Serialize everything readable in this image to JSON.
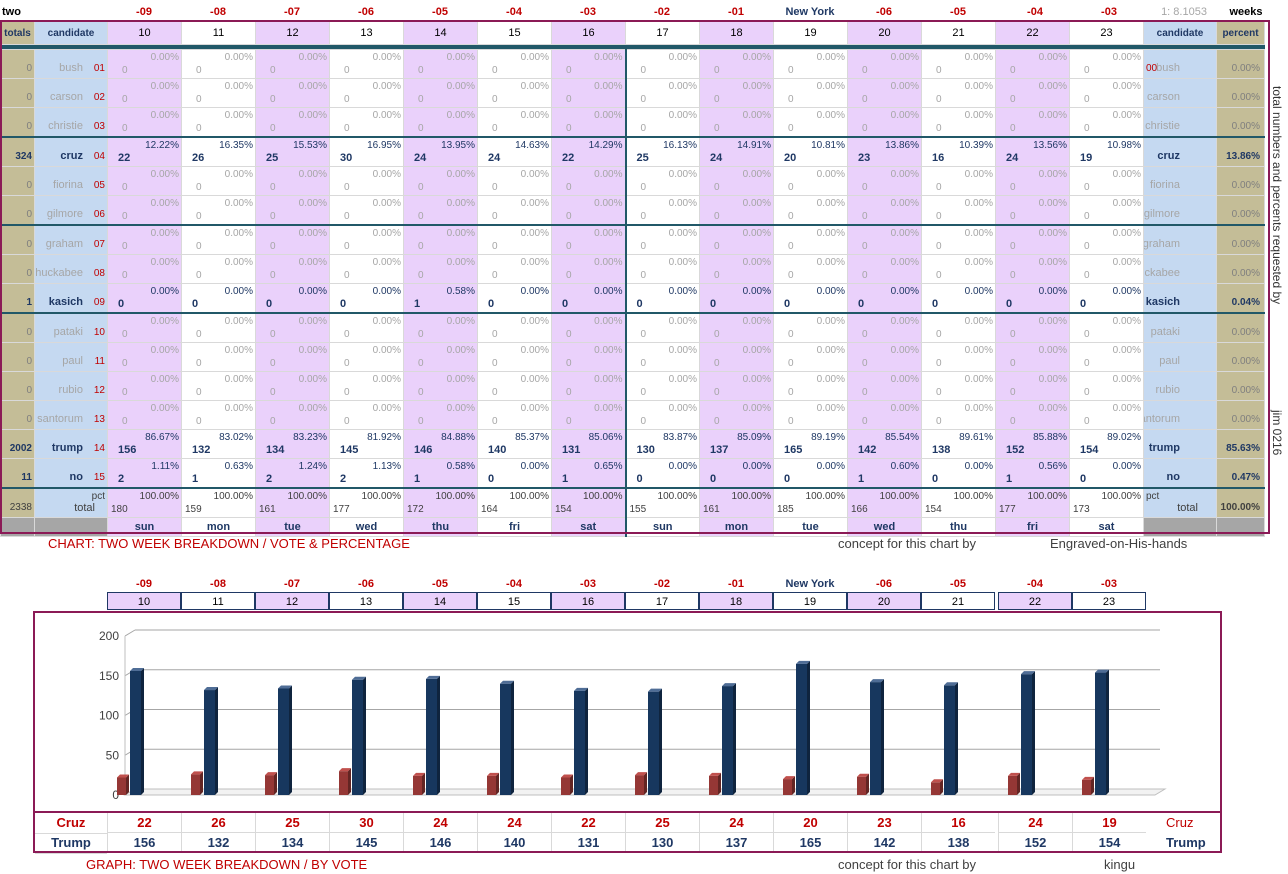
{
  "top": {
    "corner_label": "two",
    "weeks_label": "weeks",
    "ratio_label": "1: 8.1053",
    "col_headers": [
      "-09",
      "-08",
      "-07",
      "-06",
      "-05",
      "-04",
      "-03",
      "-02",
      "-01",
      "New York",
      "-06",
      "-05",
      "-04",
      "-03"
    ],
    "days": [
      "10",
      "11",
      "12",
      "13",
      "14",
      "15",
      "16",
      "17",
      "18",
      "19",
      "20",
      "21",
      "22",
      "23"
    ],
    "weekdays": [
      "sun",
      "mon",
      "tue",
      "wed",
      "thu",
      "fri",
      "sat",
      "sun",
      "mon",
      "tue",
      "wed",
      "thu",
      "fri",
      "sat"
    ],
    "left_headers": {
      "totals": "totals",
      "candidate": "candidate"
    },
    "right_headers": {
      "candidate": "candidate",
      "percent": "percent"
    },
    "pct_label": "pct",
    "total_label": "total",
    "grand_total": "2338",
    "total_pct": "100.00%",
    "daily_totals": [
      "180",
      "159",
      "161",
      "177",
      "172",
      "164",
      "154",
      "155",
      "161",
      "185",
      "166",
      "154",
      "177",
      "173"
    ],
    "side_note": "total numbers and percents requested by",
    "side_note2": "jim 0216"
  },
  "candidates": [
    {
      "name": "bush",
      "num": "01",
      "total": "0",
      "pct": "0.00%",
      "right_prefix": "00",
      "counts": [
        "0",
        "0",
        "0",
        "0",
        "0",
        "0",
        "0",
        "0",
        "0",
        "0",
        "0",
        "0",
        "0",
        "0"
      ],
      "pcts": [
        "0.00%",
        "0.00%",
        "0.00%",
        "0.00%",
        "0.00%",
        "0.00%",
        "0.00%",
        "0.00%",
        "0.00%",
        "0.00%",
        "0.00%",
        "0.00%",
        "0.00%",
        "0.00%"
      ]
    },
    {
      "name": "carson",
      "num": "02",
      "total": "0",
      "pct": "0.00%",
      "counts": [
        "0",
        "0",
        "0",
        "0",
        "0",
        "0",
        "0",
        "0",
        "0",
        "0",
        "0",
        "0",
        "0",
        "0"
      ],
      "pcts": [
        "0.00%",
        "0.00%",
        "0.00%",
        "0.00%",
        "0.00%",
        "0.00%",
        "0.00%",
        "0.00%",
        "0.00%",
        "0.00%",
        "0.00%",
        "0.00%",
        "0.00%",
        "0.00%"
      ]
    },
    {
      "name": "christie",
      "num": "03",
      "total": "0",
      "pct": "0.00%",
      "counts": [
        "0",
        "0",
        "0",
        "0",
        "0",
        "0",
        "0",
        "0",
        "0",
        "0",
        "0",
        "0",
        "0",
        "0"
      ],
      "pcts": [
        "0.00%",
        "0.00%",
        "0.00%",
        "0.00%",
        "0.00%",
        "0.00%",
        "0.00%",
        "0.00%",
        "0.00%",
        "0.00%",
        "0.00%",
        "0.00%",
        "0.00%",
        "0.00%"
      ]
    },
    {
      "name": "cruz",
      "num": "04",
      "total": "324",
      "pct": "13.86%",
      "hot": true,
      "counts": [
        "22",
        "26",
        "25",
        "30",
        "24",
        "24",
        "22",
        "25",
        "24",
        "20",
        "23",
        "16",
        "24",
        "19"
      ],
      "pcts": [
        "12.22%",
        "16.35%",
        "15.53%",
        "16.95%",
        "13.95%",
        "14.63%",
        "14.29%",
        "16.13%",
        "14.91%",
        "10.81%",
        "13.86%",
        "10.39%",
        "13.56%",
        "10.98%"
      ]
    },
    {
      "name": "fiorina",
      "num": "05",
      "total": "0",
      "pct": "0.00%",
      "counts": [
        "0",
        "0",
        "0",
        "0",
        "0",
        "0",
        "0",
        "0",
        "0",
        "0",
        "0",
        "0",
        "0",
        "0"
      ],
      "pcts": [
        "0.00%",
        "0.00%",
        "0.00%",
        "0.00%",
        "0.00%",
        "0.00%",
        "0.00%",
        "0.00%",
        "0.00%",
        "0.00%",
        "0.00%",
        "0.00%",
        "0.00%",
        "0.00%"
      ]
    },
    {
      "name": "gilmore",
      "num": "06",
      "total": "0",
      "pct": "0.00%",
      "counts": [
        "0",
        "0",
        "0",
        "0",
        "0",
        "0",
        "0",
        "0",
        "0",
        "0",
        "0",
        "0",
        "0",
        "0"
      ],
      "pcts": [
        "0.00%",
        "0.00%",
        "0.00%",
        "0.00%",
        "0.00%",
        "0.00%",
        "0.00%",
        "0.00%",
        "0.00%",
        "0.00%",
        "0.00%",
        "0.00%",
        "0.00%",
        "0.00%"
      ]
    },
    {
      "name": "graham",
      "num": "07",
      "total": "0",
      "pct": "0.00%",
      "counts": [
        "0",
        "0",
        "0",
        "0",
        "0",
        "0",
        "0",
        "0",
        "0",
        "0",
        "0",
        "0",
        "0",
        "0"
      ],
      "pcts": [
        "0.00%",
        "0.00%",
        "0.00%",
        "0.00%",
        "0.00%",
        "0.00%",
        "0.00%",
        "0.00%",
        "0.00%",
        "0.00%",
        "0.00%",
        "0.00%",
        "0.00%",
        "0.00%"
      ]
    },
    {
      "name": "huckabee",
      "num": "08",
      "total": "0",
      "pct": "0.00%",
      "counts": [
        "0",
        "0",
        "0",
        "0",
        "0",
        "0",
        "0",
        "0",
        "0",
        "0",
        "0",
        "0",
        "0",
        "0"
      ],
      "pcts": [
        "0.00%",
        "0.00%",
        "0.00%",
        "0.00%",
        "0.00%",
        "0.00%",
        "0.00%",
        "0.00%",
        "0.00%",
        "0.00%",
        "0.00%",
        "0.00%",
        "0.00%",
        "0.00%"
      ]
    },
    {
      "name": "kasich",
      "num": "09",
      "total": "1",
      "pct": "0.04%",
      "hot": true,
      "counts": [
        "0",
        "0",
        "0",
        "0",
        "1",
        "0",
        "0",
        "0",
        "0",
        "0",
        "0",
        "0",
        "0",
        "0"
      ],
      "pcts": [
        "0.00%",
        "0.00%",
        "0.00%",
        "0.00%",
        "0.58%",
        "0.00%",
        "0.00%",
        "0.00%",
        "0.00%",
        "0.00%",
        "0.00%",
        "0.00%",
        "0.00%",
        "0.00%"
      ]
    },
    {
      "name": "pataki",
      "num": "10",
      "total": "0",
      "pct": "0.00%",
      "counts": [
        "0",
        "0",
        "0",
        "0",
        "0",
        "0",
        "0",
        "0",
        "0",
        "0",
        "0",
        "0",
        "0",
        "0"
      ],
      "pcts": [
        "0.00%",
        "0.00%",
        "0.00%",
        "0.00%",
        "0.00%",
        "0.00%",
        "0.00%",
        "0.00%",
        "0.00%",
        "0.00%",
        "0.00%",
        "0.00%",
        "0.00%",
        "0.00%"
      ]
    },
    {
      "name": "paul",
      "num": "11",
      "total": "0",
      "pct": "0.00%",
      "counts": [
        "0",
        "0",
        "0",
        "0",
        "0",
        "0",
        "0",
        "0",
        "0",
        "0",
        "0",
        "0",
        "0",
        "0"
      ],
      "pcts": [
        "0.00%",
        "0.00%",
        "0.00%",
        "0.00%",
        "0.00%",
        "0.00%",
        "0.00%",
        "0.00%",
        "0.00%",
        "0.00%",
        "0.00%",
        "0.00%",
        "0.00%",
        "0.00%"
      ]
    },
    {
      "name": "rubio",
      "num": "12",
      "total": "0",
      "pct": "0.00%",
      "counts": [
        "0",
        "0",
        "0",
        "0",
        "0",
        "0",
        "0",
        "0",
        "0",
        "0",
        "0",
        "0",
        "0",
        "0"
      ],
      "pcts": [
        "0.00%",
        "0.00%",
        "0.00%",
        "0.00%",
        "0.00%",
        "0.00%",
        "0.00%",
        "0.00%",
        "0.00%",
        "0.00%",
        "0.00%",
        "0.00%",
        "0.00%",
        "0.00%"
      ]
    },
    {
      "name": "santorum",
      "num": "13",
      "total": "0",
      "pct": "0.00%",
      "counts": [
        "0",
        "0",
        "0",
        "0",
        "0",
        "0",
        "0",
        "0",
        "0",
        "0",
        "0",
        "0",
        "0",
        "0"
      ],
      "pcts": [
        "0.00%",
        "0.00%",
        "0.00%",
        "0.00%",
        "0.00%",
        "0.00%",
        "0.00%",
        "0.00%",
        "0.00%",
        "0.00%",
        "0.00%",
        "0.00%",
        "0.00%",
        "0.00%"
      ]
    },
    {
      "name": "trump",
      "num": "14",
      "total": "2002",
      "pct": "85.63%",
      "hot": true,
      "counts": [
        "156",
        "132",
        "134",
        "145",
        "146",
        "140",
        "131",
        "130",
        "137",
        "165",
        "142",
        "138",
        "152",
        "154"
      ],
      "pcts": [
        "86.67%",
        "83.02%",
        "83.23%",
        "81.92%",
        "84.88%",
        "85.37%",
        "85.06%",
        "83.87%",
        "85.09%",
        "89.19%",
        "85.54%",
        "89.61%",
        "85.88%",
        "89.02%"
      ]
    },
    {
      "name": "no",
      "num": "15",
      "total": "11",
      "pct": "0.47%",
      "hot": true,
      "counts": [
        "2",
        "1",
        "2",
        "2",
        "1",
        "0",
        "1",
        "0",
        "0",
        "0",
        "1",
        "0",
        "1",
        "0"
      ],
      "pcts": [
        "1.11%",
        "0.63%",
        "1.24%",
        "1.13%",
        "0.58%",
        "0.00%",
        "0.65%",
        "0.00%",
        "0.00%",
        "0.00%",
        "0.60%",
        "0.00%",
        "0.56%",
        "0.00%"
      ]
    }
  ],
  "captions": {
    "chart1": "CHART: TWO WEEK BREAKDOWN / VOTE & PERCENTAGE",
    "concept": "concept for this chart by",
    "author1": "Engraved-on-His-hands",
    "chart2": "GRAPH: TWO WEEK BREAKDOWN / BY VOTE",
    "author2": "kingu"
  },
  "chart_data": {
    "type": "bar",
    "categories": [
      "10",
      "11",
      "12",
      "13",
      "14",
      "15",
      "16",
      "17",
      "18",
      "19",
      "20",
      "21",
      "22",
      "23"
    ],
    "series": [
      {
        "name": "Cruz",
        "color": "#953735",
        "values": [
          22,
          26,
          25,
          30,
          24,
          24,
          22,
          25,
          24,
          20,
          23,
          16,
          24,
          19
        ]
      },
      {
        "name": "Trump",
        "color": "#17375e",
        "values": [
          156,
          132,
          134,
          145,
          146,
          140,
          131,
          130,
          137,
          165,
          142,
          138,
          152,
          154
        ]
      }
    ],
    "ylim": [
      0,
      200
    ],
    "yticks": [
      "0",
      "50",
      "100",
      "150",
      "200"
    ],
    "grid": true,
    "table_labels": {
      "cruz": "Cruz",
      "trump": "Trump"
    }
  }
}
